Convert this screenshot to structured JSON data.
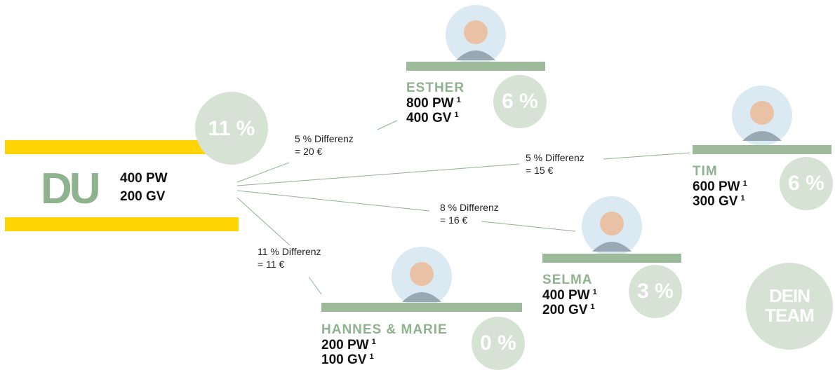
{
  "center": {
    "percent": "11 %",
    "label": "DU",
    "pw": "400 PW",
    "gv": "200 GV"
  },
  "members": [
    {
      "name": "ESTHER",
      "pw": "800 PW",
      "gv": "400 GV",
      "footnote": "1",
      "percent": "6 %"
    },
    {
      "name": "TIM",
      "pw": "600 PW",
      "gv": "300 GV",
      "footnote": "1",
      "percent": "6 %"
    },
    {
      "name": "SELMA",
      "pw": "400 PW",
      "gv": "200 GV",
      "footnote": "1",
      "percent": "3 %"
    },
    {
      "name": "HANNES & MARIE",
      "pw": "200 PW",
      "gv": "100 GV",
      "footnote": "1",
      "percent": "0 %"
    }
  ],
  "edges": [
    {
      "difference": "5 % Differenz",
      "amount": "= 20 €"
    },
    {
      "difference": "5 % Differenz",
      "amount": "= 15 €"
    },
    {
      "difference": "8 % Differenz",
      "amount": "= 16 €"
    },
    {
      "difference": "11 % Differenz",
      "amount": "= 11 €"
    }
  ],
  "team": [
    "DEIN",
    "TEAM"
  ]
}
